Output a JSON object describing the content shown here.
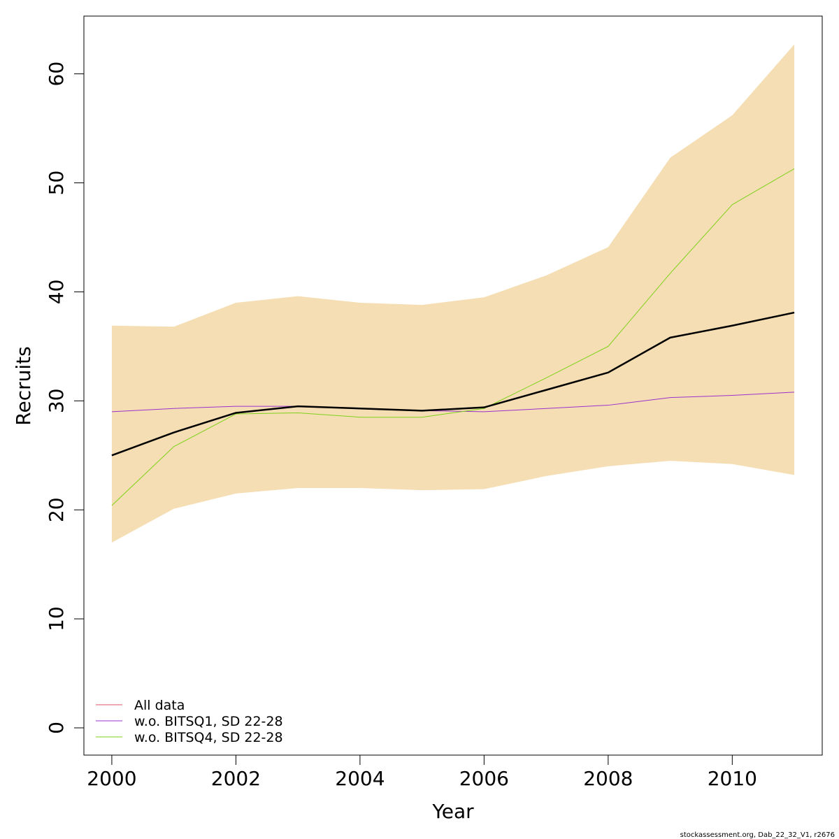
{
  "chart_data": {
    "type": "line",
    "xlabel": "Year",
    "ylabel": "Recruits",
    "xlim": [
      1999.55,
      2011.45
    ],
    "ylim": [
      -2.5,
      65.3
    ],
    "x_ticks": [
      2000,
      2002,
      2004,
      2006,
      2008,
      2010
    ],
    "y_ticks": [
      0,
      10,
      20,
      30,
      40,
      50,
      60
    ],
    "x": [
      2000,
      2001,
      2002,
      2003,
      2004,
      2005,
      2006,
      2007,
      2008,
      2009,
      2010,
      2011
    ],
    "band": {
      "color": "#F5DEB3",
      "lower": [
        17.0,
        20.1,
        21.5,
        22.0,
        22.0,
        21.8,
        21.9,
        23.1,
        24.0,
        24.5,
        24.2,
        23.2
      ],
      "upper": [
        36.9,
        36.8,
        39.0,
        39.6,
        39.0,
        38.8,
        39.5,
        41.5,
        44.1,
        52.3,
        56.2,
        62.7
      ]
    },
    "series": [
      {
        "name": "All data",
        "color": "#DF536B",
        "legend": true,
        "width": 1,
        "values": [
          25.0,
          27.1,
          28.9,
          29.5,
          29.3,
          29.1,
          29.4,
          31.0,
          32.6,
          35.8,
          36.9,
          38.1
        ]
      },
      {
        "name": "w.o. BITSQ1, SD 22-28",
        "color": "#9A32CD",
        "legend": true,
        "width": 1,
        "values": [
          29.0,
          29.3,
          29.5,
          29.5,
          29.3,
          29.1,
          29.0,
          29.3,
          29.6,
          30.3,
          30.5,
          30.8
        ]
      },
      {
        "name": "w.o. BITSQ4, SD 22-28",
        "color": "#7FD11B",
        "legend": true,
        "width": 1,
        "values": [
          20.4,
          25.8,
          28.8,
          28.9,
          28.5,
          28.5,
          29.3,
          32.1,
          35.0,
          41.7,
          48.0,
          51.3
        ]
      },
      {
        "name": "",
        "color": "#000000",
        "legend": false,
        "width": 2.5,
        "values": [
          25.0,
          27.1,
          28.9,
          29.5,
          29.3,
          29.1,
          29.4,
          31.0,
          32.6,
          35.8,
          36.9,
          38.1
        ]
      }
    ],
    "legend_position": "bottom-left",
    "grid": false
  },
  "credit": "stockassessment.org, Dab_22_32_V1, r2676"
}
